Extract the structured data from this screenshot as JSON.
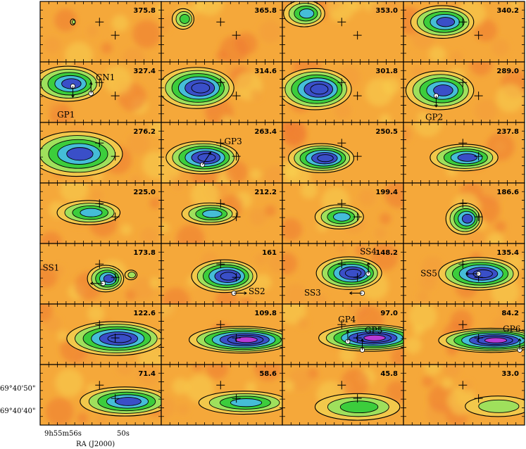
{
  "chart_data": {
    "type": "channel-map",
    "xlabel": "RA (J2000)",
    "ylabel": "",
    "x_ticks": [
      "9h55m56s",
      "50s"
    ],
    "y_ticks": [
      "69°40'50\"",
      "69°40'40\""
    ],
    "colors": {
      "background": "#f5a83a",
      "low": "#f2c84b",
      "mid": "#9fe05c",
      "green": "#3ccd3c",
      "cyan": "#45bdd8",
      "blue": "#3a4fc8",
      "peak": "#b93ad6"
    },
    "panels": [
      {
        "velocity": "375.8",
        "emission": [
          {
            "cx": 0.27,
            "cy": 0.34,
            "rx": 0.02,
            "ry": 0.05,
            "level": 2
          }
        ]
      },
      {
        "velocity": "365.8",
        "emission": [
          {
            "cx": 0.18,
            "cy": 0.29,
            "rx": 0.09,
            "ry": 0.17,
            "level": 3
          }
        ]
      },
      {
        "velocity": "353.0",
        "emission": [
          {
            "cx": 0.18,
            "cy": 0.2,
            "rx": 0.17,
            "ry": 0.22,
            "level": 4
          }
        ]
      },
      {
        "velocity": "340.2",
        "emission": [
          {
            "cx": 0.32,
            "cy": 0.34,
            "rx": 0.26,
            "ry": 0.27,
            "level": 5
          }
        ]
      },
      {
        "velocity": "327.4",
        "emission": [
          {
            "cx": 0.23,
            "cy": 0.36,
            "rx": 0.28,
            "ry": 0.29,
            "level": 5
          }
        ]
      },
      {
        "velocity": "314.6",
        "emission": [
          {
            "cx": 0.29,
            "cy": 0.43,
            "rx": 0.31,
            "ry": 0.34,
            "level": 6
          }
        ]
      },
      {
        "velocity": "301.8",
        "emission": [
          {
            "cx": 0.27,
            "cy": 0.45,
            "rx": 0.3,
            "ry": 0.34,
            "level": 6
          }
        ]
      },
      {
        "velocity": "289.0",
        "emission": [
          {
            "cx": 0.3,
            "cy": 0.47,
            "rx": 0.28,
            "ry": 0.32,
            "level": 5
          }
        ]
      },
      {
        "velocity": "276.2",
        "emission": [
          {
            "cx": 0.3,
            "cy": 0.52,
            "rx": 0.38,
            "ry": 0.37,
            "level": 5
          }
        ]
      },
      {
        "velocity": "263.4",
        "emission": [
          {
            "cx": 0.34,
            "cy": 0.58,
            "rx": 0.3,
            "ry": 0.27,
            "level": 6
          }
        ]
      },
      {
        "velocity": "250.5",
        "emission": [
          {
            "cx": 0.32,
            "cy": 0.59,
            "rx": 0.27,
            "ry": 0.24,
            "level": 6
          }
        ]
      },
      {
        "velocity": "237.8",
        "emission": [
          {
            "cx": 0.5,
            "cy": 0.58,
            "rx": 0.28,
            "ry": 0.22,
            "level": 5
          }
        ]
      },
      {
        "velocity": "225.0",
        "emission": [
          {
            "cx": 0.4,
            "cy": 0.49,
            "rx": 0.26,
            "ry": 0.2,
            "level": 4
          }
        ]
      },
      {
        "velocity": "212.2",
        "emission": [
          {
            "cx": 0.4,
            "cy": 0.51,
            "rx": 0.23,
            "ry": 0.18,
            "level": 4
          }
        ]
      },
      {
        "velocity": "199.4",
        "emission": [
          {
            "cx": 0.47,
            "cy": 0.56,
            "rx": 0.2,
            "ry": 0.2,
            "level": 4
          }
        ]
      },
      {
        "velocity": "186.6",
        "emission": [
          {
            "cx": 0.5,
            "cy": 0.59,
            "rx": 0.15,
            "ry": 0.26,
            "level": 5
          }
        ]
      },
      {
        "velocity": "173.8",
        "emission": [
          {
            "cx": 0.54,
            "cy": 0.58,
            "rx": 0.15,
            "ry": 0.22,
            "level": 5
          },
          {
            "cx": 0.75,
            "cy": 0.52,
            "rx": 0.05,
            "ry": 0.08,
            "level": 2
          }
        ]
      },
      {
        "velocity": "161",
        "emission": [
          {
            "cx": 0.52,
            "cy": 0.54,
            "rx": 0.27,
            "ry": 0.27,
            "level": 6
          }
        ]
      },
      {
        "velocity": "148.2",
        "emission": [
          {
            "cx": 0.55,
            "cy": 0.49,
            "rx": 0.27,
            "ry": 0.27,
            "level": 6
          }
        ]
      },
      {
        "velocity": "135.4",
        "emission": [
          {
            "cx": 0.62,
            "cy": 0.5,
            "rx": 0.33,
            "ry": 0.27,
            "level": 6
          }
        ]
      },
      {
        "velocity": "122.6",
        "emission": [
          {
            "cx": 0.62,
            "cy": 0.57,
            "rx": 0.4,
            "ry": 0.28,
            "level": 6
          }
        ]
      },
      {
        "velocity": "109.8",
        "emission": [
          {
            "cx": 0.66,
            "cy": 0.59,
            "rx": 0.43,
            "ry": 0.22,
            "level": 7
          }
        ]
      },
      {
        "velocity": "97.0",
        "emission": [
          {
            "cx": 0.72,
            "cy": 0.56,
            "rx": 0.42,
            "ry": 0.22,
            "level": 7
          }
        ]
      },
      {
        "velocity": "84.2",
        "emission": [
          {
            "cx": 0.72,
            "cy": 0.6,
            "rx": 0.43,
            "ry": 0.2,
            "level": 7
          }
        ]
      },
      {
        "velocity": "71.4",
        "emission": [
          {
            "cx": 0.7,
            "cy": 0.61,
            "rx": 0.37,
            "ry": 0.24,
            "level": 5
          }
        ]
      },
      {
        "velocity": "58.6",
        "emission": [
          {
            "cx": 0.68,
            "cy": 0.63,
            "rx": 0.37,
            "ry": 0.19,
            "level": 4
          }
        ]
      },
      {
        "velocity": "45.8",
        "emission": [
          {
            "cx": 0.62,
            "cy": 0.7,
            "rx": 0.35,
            "ry": 0.22,
            "level": 3
          }
        ]
      },
      {
        "velocity": "33.0",
        "emission": [
          {
            "cx": 0.78,
            "cy": 0.69,
            "rx": 0.27,
            "ry": 0.17,
            "level": 2
          }
        ]
      }
    ],
    "annotations": [
      {
        "panel": 4,
        "label": "CN1",
        "arrow": "up"
      },
      {
        "panel": 4,
        "label": "GP1",
        "arrow": "down"
      },
      {
        "panel": 7,
        "label": "GP2",
        "arrow": "down"
      },
      {
        "panel": 9,
        "label": "GP3",
        "arrow": "up-right"
      },
      {
        "panel": 16,
        "label": "SS1",
        "arrow": "left"
      },
      {
        "panel": 17,
        "label": "SS2",
        "arrow": "right"
      },
      {
        "panel": 18,
        "label": "SS3",
        "arrow": "left"
      },
      {
        "panel": 18,
        "label": "SS4",
        "arrow": "up"
      },
      {
        "panel": 19,
        "label": "SS5",
        "arrow": "left"
      },
      {
        "panel": 22,
        "label": "GP4",
        "arrow": "up"
      },
      {
        "panel": 22,
        "label": "GP5",
        "arrow": "up"
      },
      {
        "panel": 23,
        "label": "GP6",
        "arrow": "up"
      }
    ]
  }
}
